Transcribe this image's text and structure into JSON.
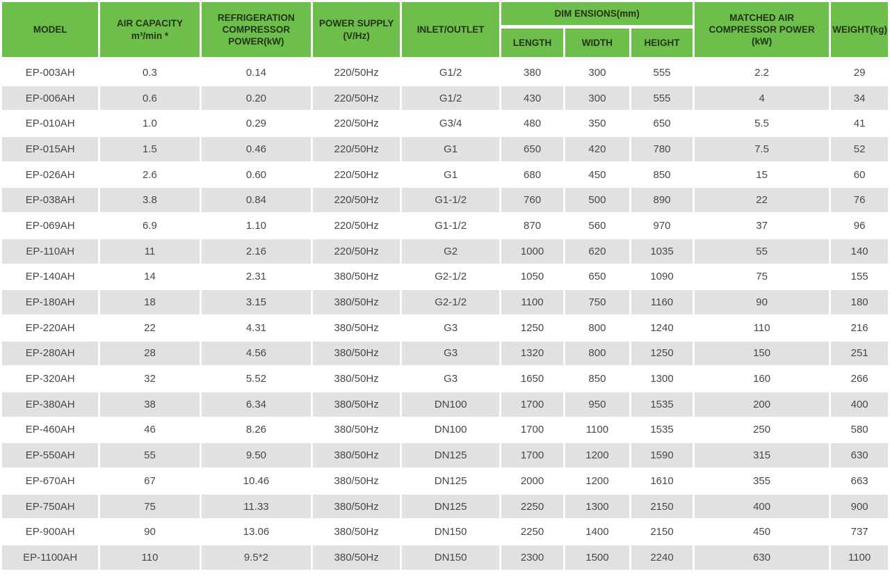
{
  "table": {
    "header": {
      "model": "MODEL",
      "air_capacity": [
        "AIR CAPACITY",
        "m³/min *"
      ],
      "refrigeration_compressor_power": [
        "REFRIGERATION",
        "COMPRESSOR",
        "POWER(kW)"
      ],
      "power_supply": [
        "POWER SUPPLY",
        "(V/Hz)"
      ],
      "inlet_outlet": "INLET/OUTLET",
      "dimensions_group": "DIM ENSIONS(mm)",
      "length": "LENGTH",
      "width": "WIDTH",
      "height": "HEIGHT",
      "matched_air_compressor_power": [
        "MATCHED AIR",
        "COMPRESSOR POWER",
        "(kW)"
      ],
      "weight": "WEIGHT(kg)"
    },
    "rows": [
      [
        "EP-003AH",
        "0.3",
        "0.14",
        "220/50Hz",
        "G1/2",
        "380",
        "300",
        "555",
        "2.2",
        "29"
      ],
      [
        "EP-006AH",
        "0.6",
        "0.20",
        "220/50Hz",
        "G1/2",
        "430",
        "300",
        "555",
        "4",
        "34"
      ],
      [
        "EP-010AH",
        "1.0",
        "0.29",
        "220/50Hz",
        "G3/4",
        "480",
        "350",
        "650",
        "5.5",
        "41"
      ],
      [
        "EP-015AH",
        "1.5",
        "0.46",
        "220/50Hz",
        "G1",
        "650",
        "420",
        "780",
        "7.5",
        "52"
      ],
      [
        "EP-026AH",
        "2.6",
        "0.60",
        "220/50Hz",
        "G1",
        "680",
        "450",
        "850",
        "15",
        "60"
      ],
      [
        "EP-038AH",
        "3.8",
        "0.84",
        "220/50Hz",
        "G1-1/2",
        "760",
        "500",
        "890",
        "22",
        "76"
      ],
      [
        "EP-069AH",
        "6.9",
        "1.10",
        "220/50Hz",
        "G1-1/2",
        "870",
        "560",
        "970",
        "37",
        "96"
      ],
      [
        "EP-110AH",
        "11",
        "2.16",
        "220/50Hz",
        "G2",
        "1000",
        "620",
        "1035",
        "55",
        "140"
      ],
      [
        "EP-140AH",
        "14",
        "2.31",
        "380/50Hz",
        "G2-1/2",
        "1050",
        "650",
        "1090",
        "75",
        "155"
      ],
      [
        "EP-180AH",
        "18",
        "3.15",
        "380/50Hz",
        "G2-1/2",
        "1100",
        "750",
        "1160",
        "90",
        "180"
      ],
      [
        "EP-220AH",
        "22",
        "4.31",
        "380/50Hz",
        "G3",
        "1250",
        "800",
        "1240",
        "110",
        "216"
      ],
      [
        "EP-280AH",
        "28",
        "4.56",
        "380/50Hz",
        "G3",
        "1320",
        "800",
        "1250",
        "150",
        "251"
      ],
      [
        "EP-320AH",
        "32",
        "5.52",
        "380/50Hz",
        "G3",
        "1650",
        "850",
        "1300",
        "160",
        "266"
      ],
      [
        "EP-380AH",
        "38",
        "6.34",
        "380/50Hz",
        "DN100",
        "1700",
        "950",
        "1535",
        "200",
        "400"
      ],
      [
        "EP-460AH",
        "46",
        "8.26",
        "380/50Hz",
        "DN100",
        "1700",
        "1100",
        "1535",
        "250",
        "580"
      ],
      [
        "EP-550AH",
        "55",
        "9.50",
        "380/50Hz",
        "DN125",
        "1700",
        "1200",
        "1590",
        "315",
        "630"
      ],
      [
        "EP-670AH",
        "67",
        "10.46",
        "380/50Hz",
        "DN125",
        "2000",
        "1200",
        "1610",
        "355",
        "663"
      ],
      [
        "EP-750AH",
        "75",
        "11.33",
        "380/50Hz",
        "DN125",
        "2250",
        "1300",
        "2150",
        "400",
        "900"
      ],
      [
        "EP-900AH",
        "90",
        "13.06",
        "380/50Hz",
        "DN150",
        "2250",
        "1400",
        "2150",
        "450",
        "737"
      ],
      [
        "EP-1100AH",
        "110",
        "9.5*2",
        "380/50Hz",
        "DN150",
        "2300",
        "1500",
        "2240",
        "630",
        "1100"
      ]
    ]
  },
  "colors": {
    "header_green": "#6ebe4b",
    "header_text": "#243318",
    "row_stripe": "#e1e1e1",
    "body_text": "#474747",
    "background": "#ffffff"
  }
}
